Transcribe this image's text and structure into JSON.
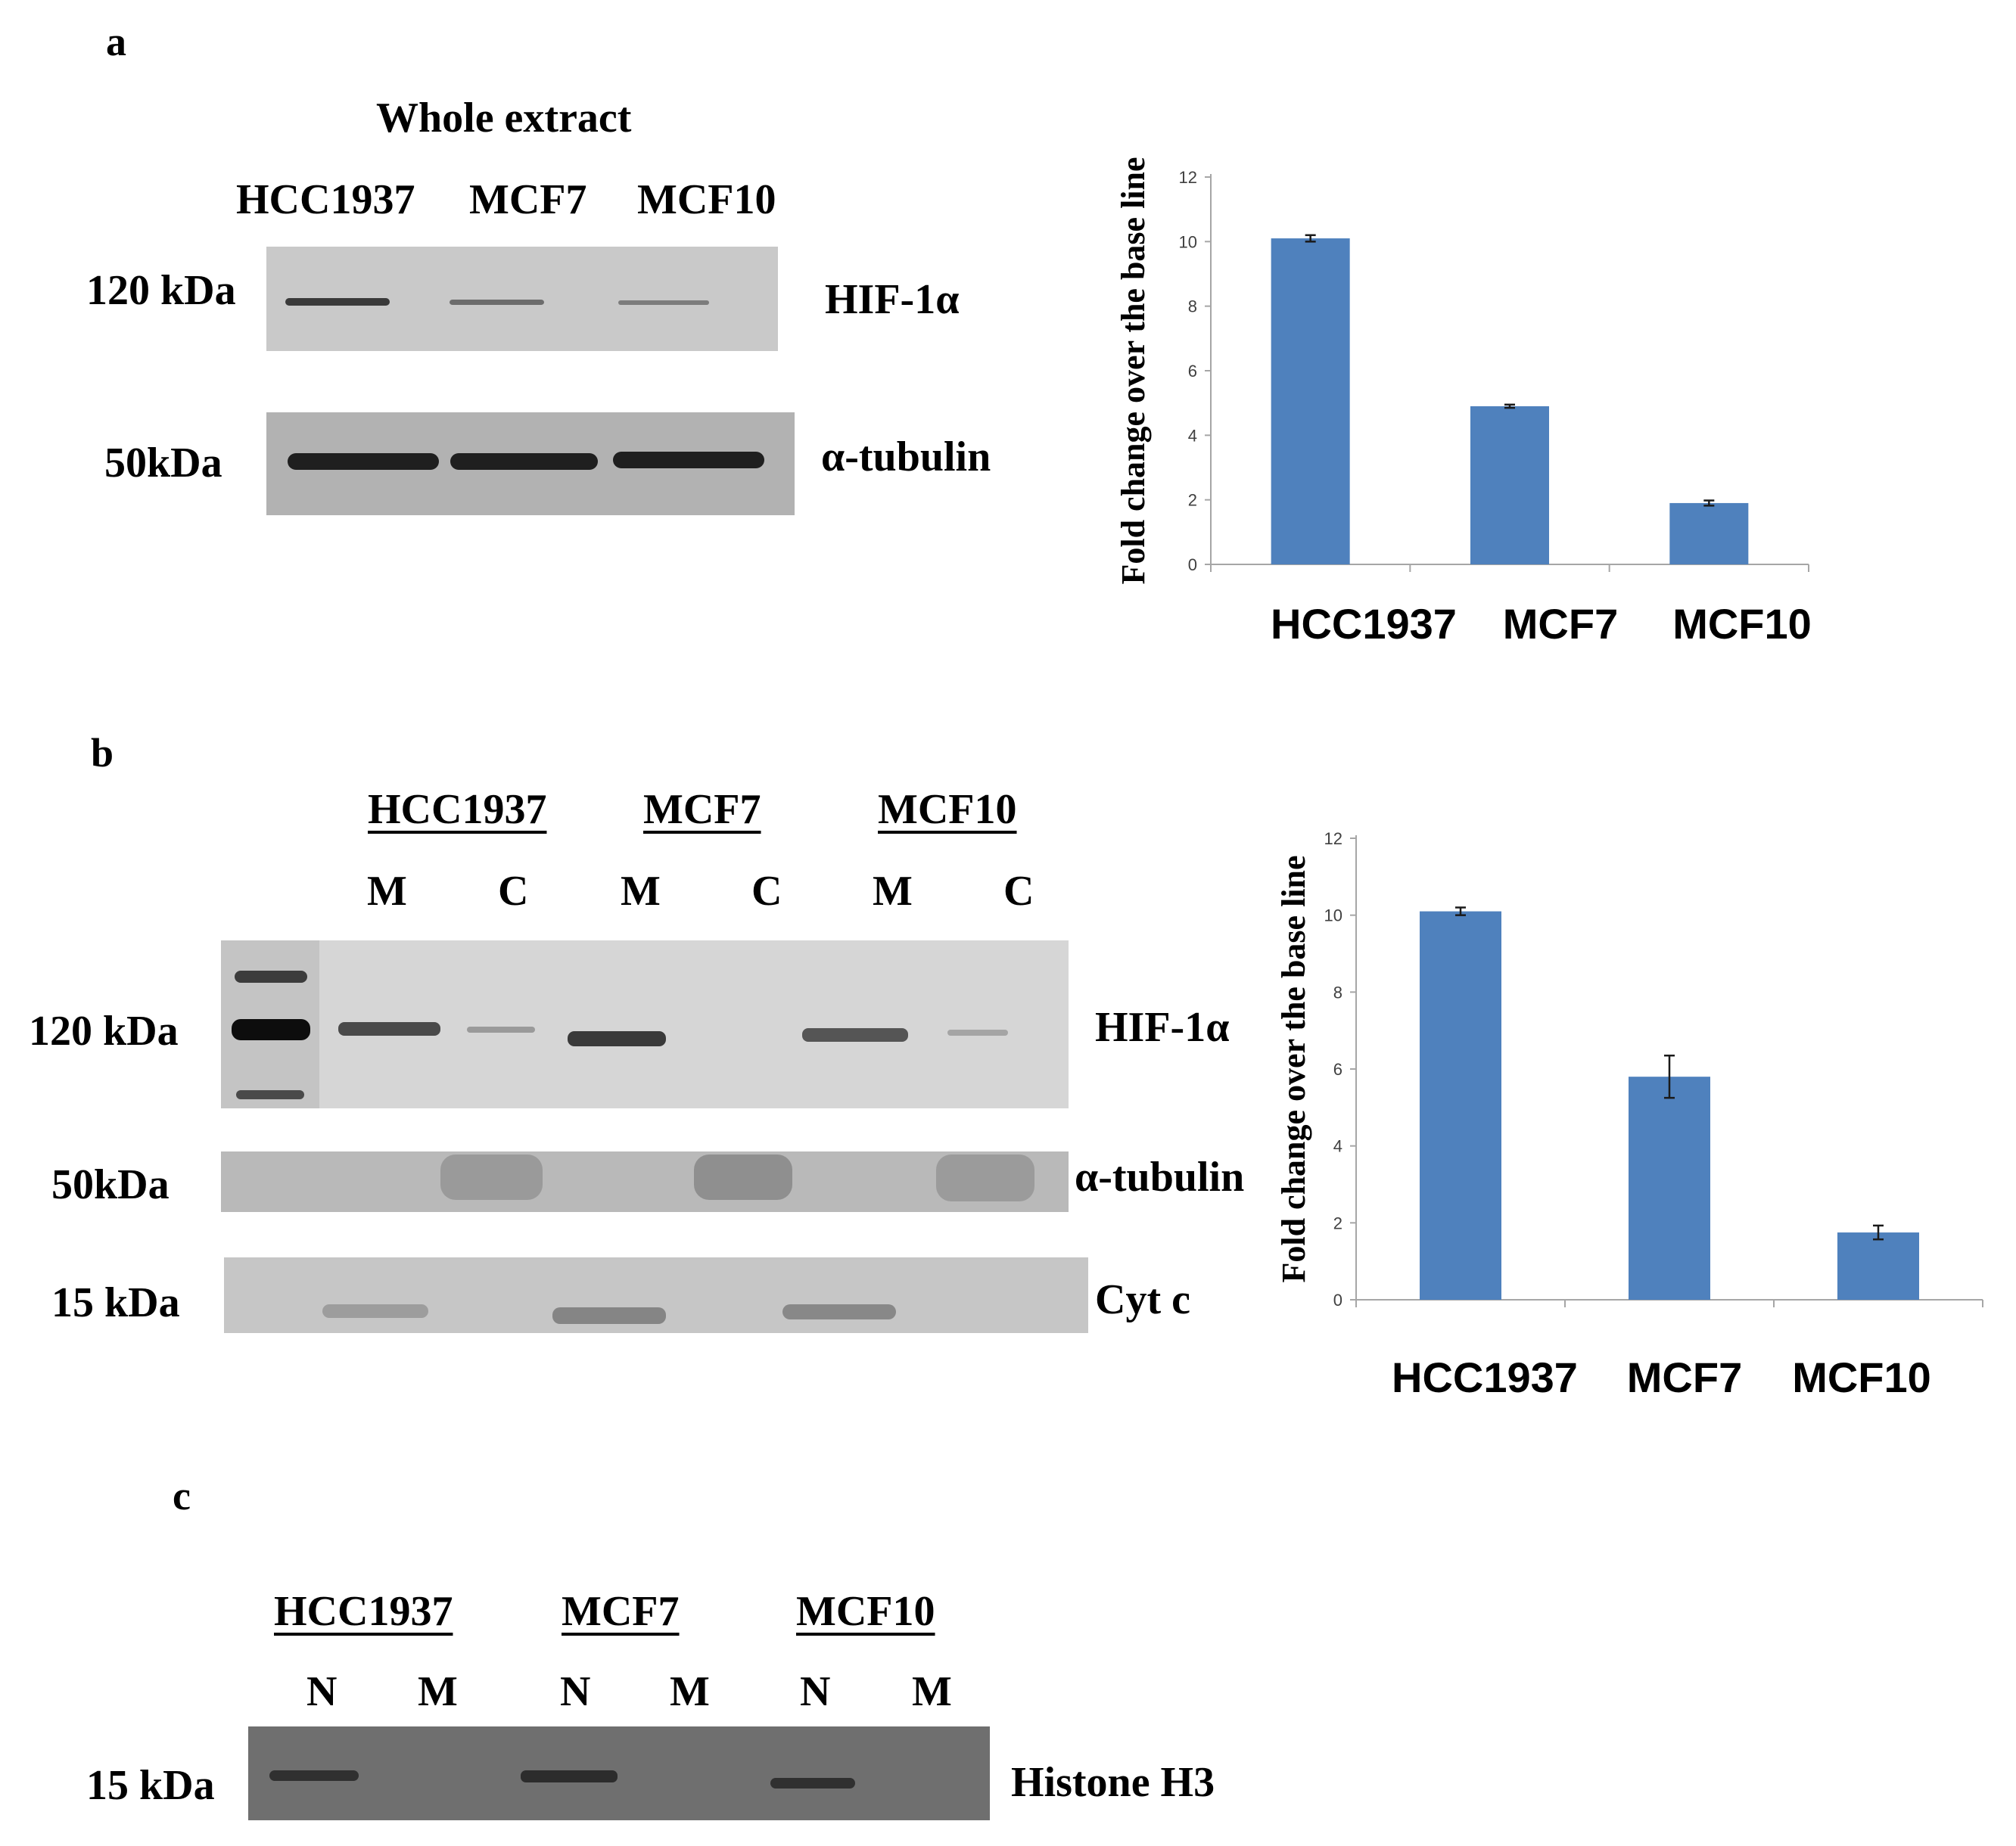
{
  "panel_a": {
    "letter": "a",
    "blot_title": "Whole extract",
    "lanes": [
      "HCC1937",
      "MCF7",
      "MCF10"
    ],
    "rows": [
      {
        "kda": "120 kDa",
        "protein": "HIF-1α"
      },
      {
        "kda": "50kDa",
        "protein": "α-tubulin"
      }
    ]
  },
  "panel_b": {
    "letter": "b",
    "groups": [
      "HCC1937",
      "MCF7",
      "MCF10"
    ],
    "fractions": [
      "M",
      "C",
      "M",
      "C",
      "M",
      "C"
    ],
    "rows": [
      {
        "kda": "120 kDa",
        "protein": "HIF-1α"
      },
      {
        "kda": "50kDa",
        "protein": "α-tubulin"
      },
      {
        "kda": "15 kDa",
        "protein": "Cyt c"
      }
    ]
  },
  "panel_c": {
    "letter": "c",
    "groups": [
      "HCC1937",
      "MCF7",
      "MCF10"
    ],
    "fractions": [
      "N",
      "M",
      "N",
      "M",
      "N",
      "M"
    ],
    "rows": [
      {
        "kda": "15 kDa",
        "protein": "Histone H3"
      }
    ]
  },
  "chart_data": [
    {
      "type": "bar",
      "panel": "a",
      "title": "",
      "categories": [
        "HCC1937",
        "MCF7",
        "MCF10"
      ],
      "values": [
        10.1,
        4.9,
        1.9
      ],
      "errors": [
        0.1,
        0.05,
        0.08
      ],
      "xlabel": "",
      "ylabel": "Fold change  over the base line",
      "ylim": [
        0,
        12
      ],
      "yticks": [
        "0",
        "2",
        "4",
        "6",
        "8",
        "10",
        "12"
      ],
      "bar_color": "#4f81bd",
      "grid": false
    },
    {
      "type": "bar",
      "panel": "b",
      "title": "",
      "categories": [
        "HCC1937",
        "MCF7",
        "MCF10"
      ],
      "values": [
        10.1,
        5.8,
        1.75
      ],
      "errors": [
        0.1,
        0.55,
        0.18
      ],
      "xlabel": "",
      "ylabel": "Fold change  over the base line",
      "ylim": [
        0,
        12
      ],
      "yticks": [
        "0",
        "2",
        "4",
        "6",
        "8",
        "10",
        "12"
      ],
      "bar_color": "#4f81bd",
      "grid": false
    }
  ]
}
